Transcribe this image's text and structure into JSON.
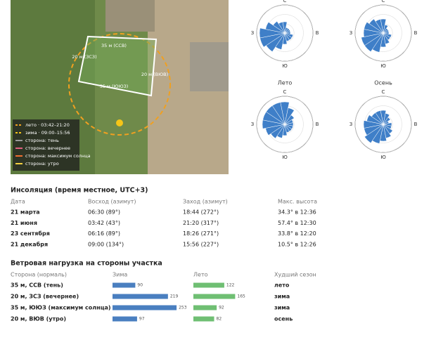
{
  "map": {
    "sides": [
      "35 м (ССВ)",
      "20 м (ЗСЗ)",
      "20 м (ВЮВ)",
      "35 м (ЮЮЗ)"
    ],
    "legend": [
      {
        "label": "лето · 03:42–21:20",
        "color": "#f0a020"
      },
      {
        "label": "зима · 09:00–15:56",
        "color": "#f5c518"
      },
      {
        "label": "сторона: тень",
        "color": "#9a9a9a"
      },
      {
        "label": "сторона: вечернее",
        "color": "#e06080"
      },
      {
        "label": "сторона: максимум солнца",
        "color": "#f07030"
      },
      {
        "label": "сторона: утро",
        "color": "#f5d040"
      }
    ]
  },
  "compass": {
    "n": "С",
    "e": "В",
    "s": "Ю",
    "w": "З"
  },
  "roses": {
    "color": "#3f7fc8",
    "rlim": [
      0,
      10
    ],
    "rticks": [
      3.3,
      6.6,
      10
    ],
    "charts": [
      {
        "values": [
          4,
          2,
          2,
          2,
          2,
          3,
          3,
          3,
          4,
          6,
          8,
          9,
          9,
          7,
          5,
          4
        ]
      },
      {
        "values": [
          5,
          3,
          2,
          2,
          2,
          3,
          3,
          4,
          5,
          7,
          8,
          8,
          7,
          7,
          6,
          5
        ]
      },
      {
        "title": "Лето",
        "values": [
          8,
          6,
          4,
          3,
          3,
          3,
          3,
          3,
          4,
          5,
          6,
          7,
          8,
          8,
          8,
          8
        ]
      },
      {
        "title": "Осень",
        "values": [
          5,
          4,
          3,
          2,
          3,
          3,
          4,
          5,
          6,
          7,
          8,
          7,
          7,
          6,
          5,
          5
        ]
      }
    ]
  },
  "insolation": {
    "title": "Инсоляция (время местное, UTC+3)",
    "header": [
      "Дата",
      "Восход (азимут)",
      "Заход (азимут)",
      "Макс. высота"
    ],
    "rows": [
      [
        "21 марта",
        "06:30 (89°)",
        "18:44 (272°)",
        "34.3° в 12:36"
      ],
      [
        "21 июня",
        "03:42 (43°)",
        "21:20 (317°)",
        "57.4° в 12:30"
      ],
      [
        "23 сентября",
        "06:16 (89°)",
        "18:26 (271°)",
        "33.8° в 12:20"
      ],
      [
        "21 декабря",
        "09:00 (134°)",
        "15:56 (227°)",
        "10.5° в 12:26"
      ]
    ]
  },
  "wind": {
    "title": "Ветровая нагрузка на стороны участка",
    "header": [
      "Сторона (нормаль)",
      "Зима",
      "Лето",
      "Худший сезон"
    ],
    "xlim": [
      0,
      300
    ],
    "colors": [
      "#4a7fc0",
      "#6fbf73"
    ],
    "rows": [
      {
        "side": "35 м, ССВ (тень)",
        "winter": 90,
        "summer": 122,
        "worst": "лето"
      },
      {
        "side": "20 м, ЗСЗ (вечернее)",
        "winter": 219,
        "summer": 165,
        "worst": "зима"
      },
      {
        "side": "35 м, ЮЮЗ (максимум солнца)",
        "winter": 253,
        "summer": 92,
        "worst": "зима"
      },
      {
        "side": "20 м, ВЮВ (утро)",
        "winter": 97,
        "summer": 82,
        "worst": "осень"
      }
    ]
  }
}
